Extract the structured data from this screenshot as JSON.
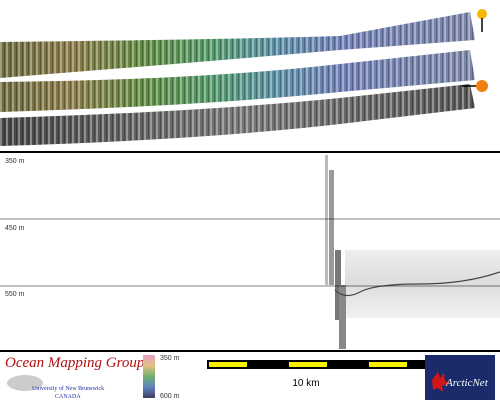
{
  "profile": {
    "depth_labels": [
      "350 m",
      "450 m",
      "550 m"
    ]
  },
  "footer": {
    "group": "Ocean Mapping Group",
    "university": "University of New Brunswick",
    "country": "CANADA",
    "color_scale": {
      "top": "350 m",
      "bottom": "600 m"
    },
    "scale_bar": "10 km",
    "partner": "ArcticNet"
  }
}
